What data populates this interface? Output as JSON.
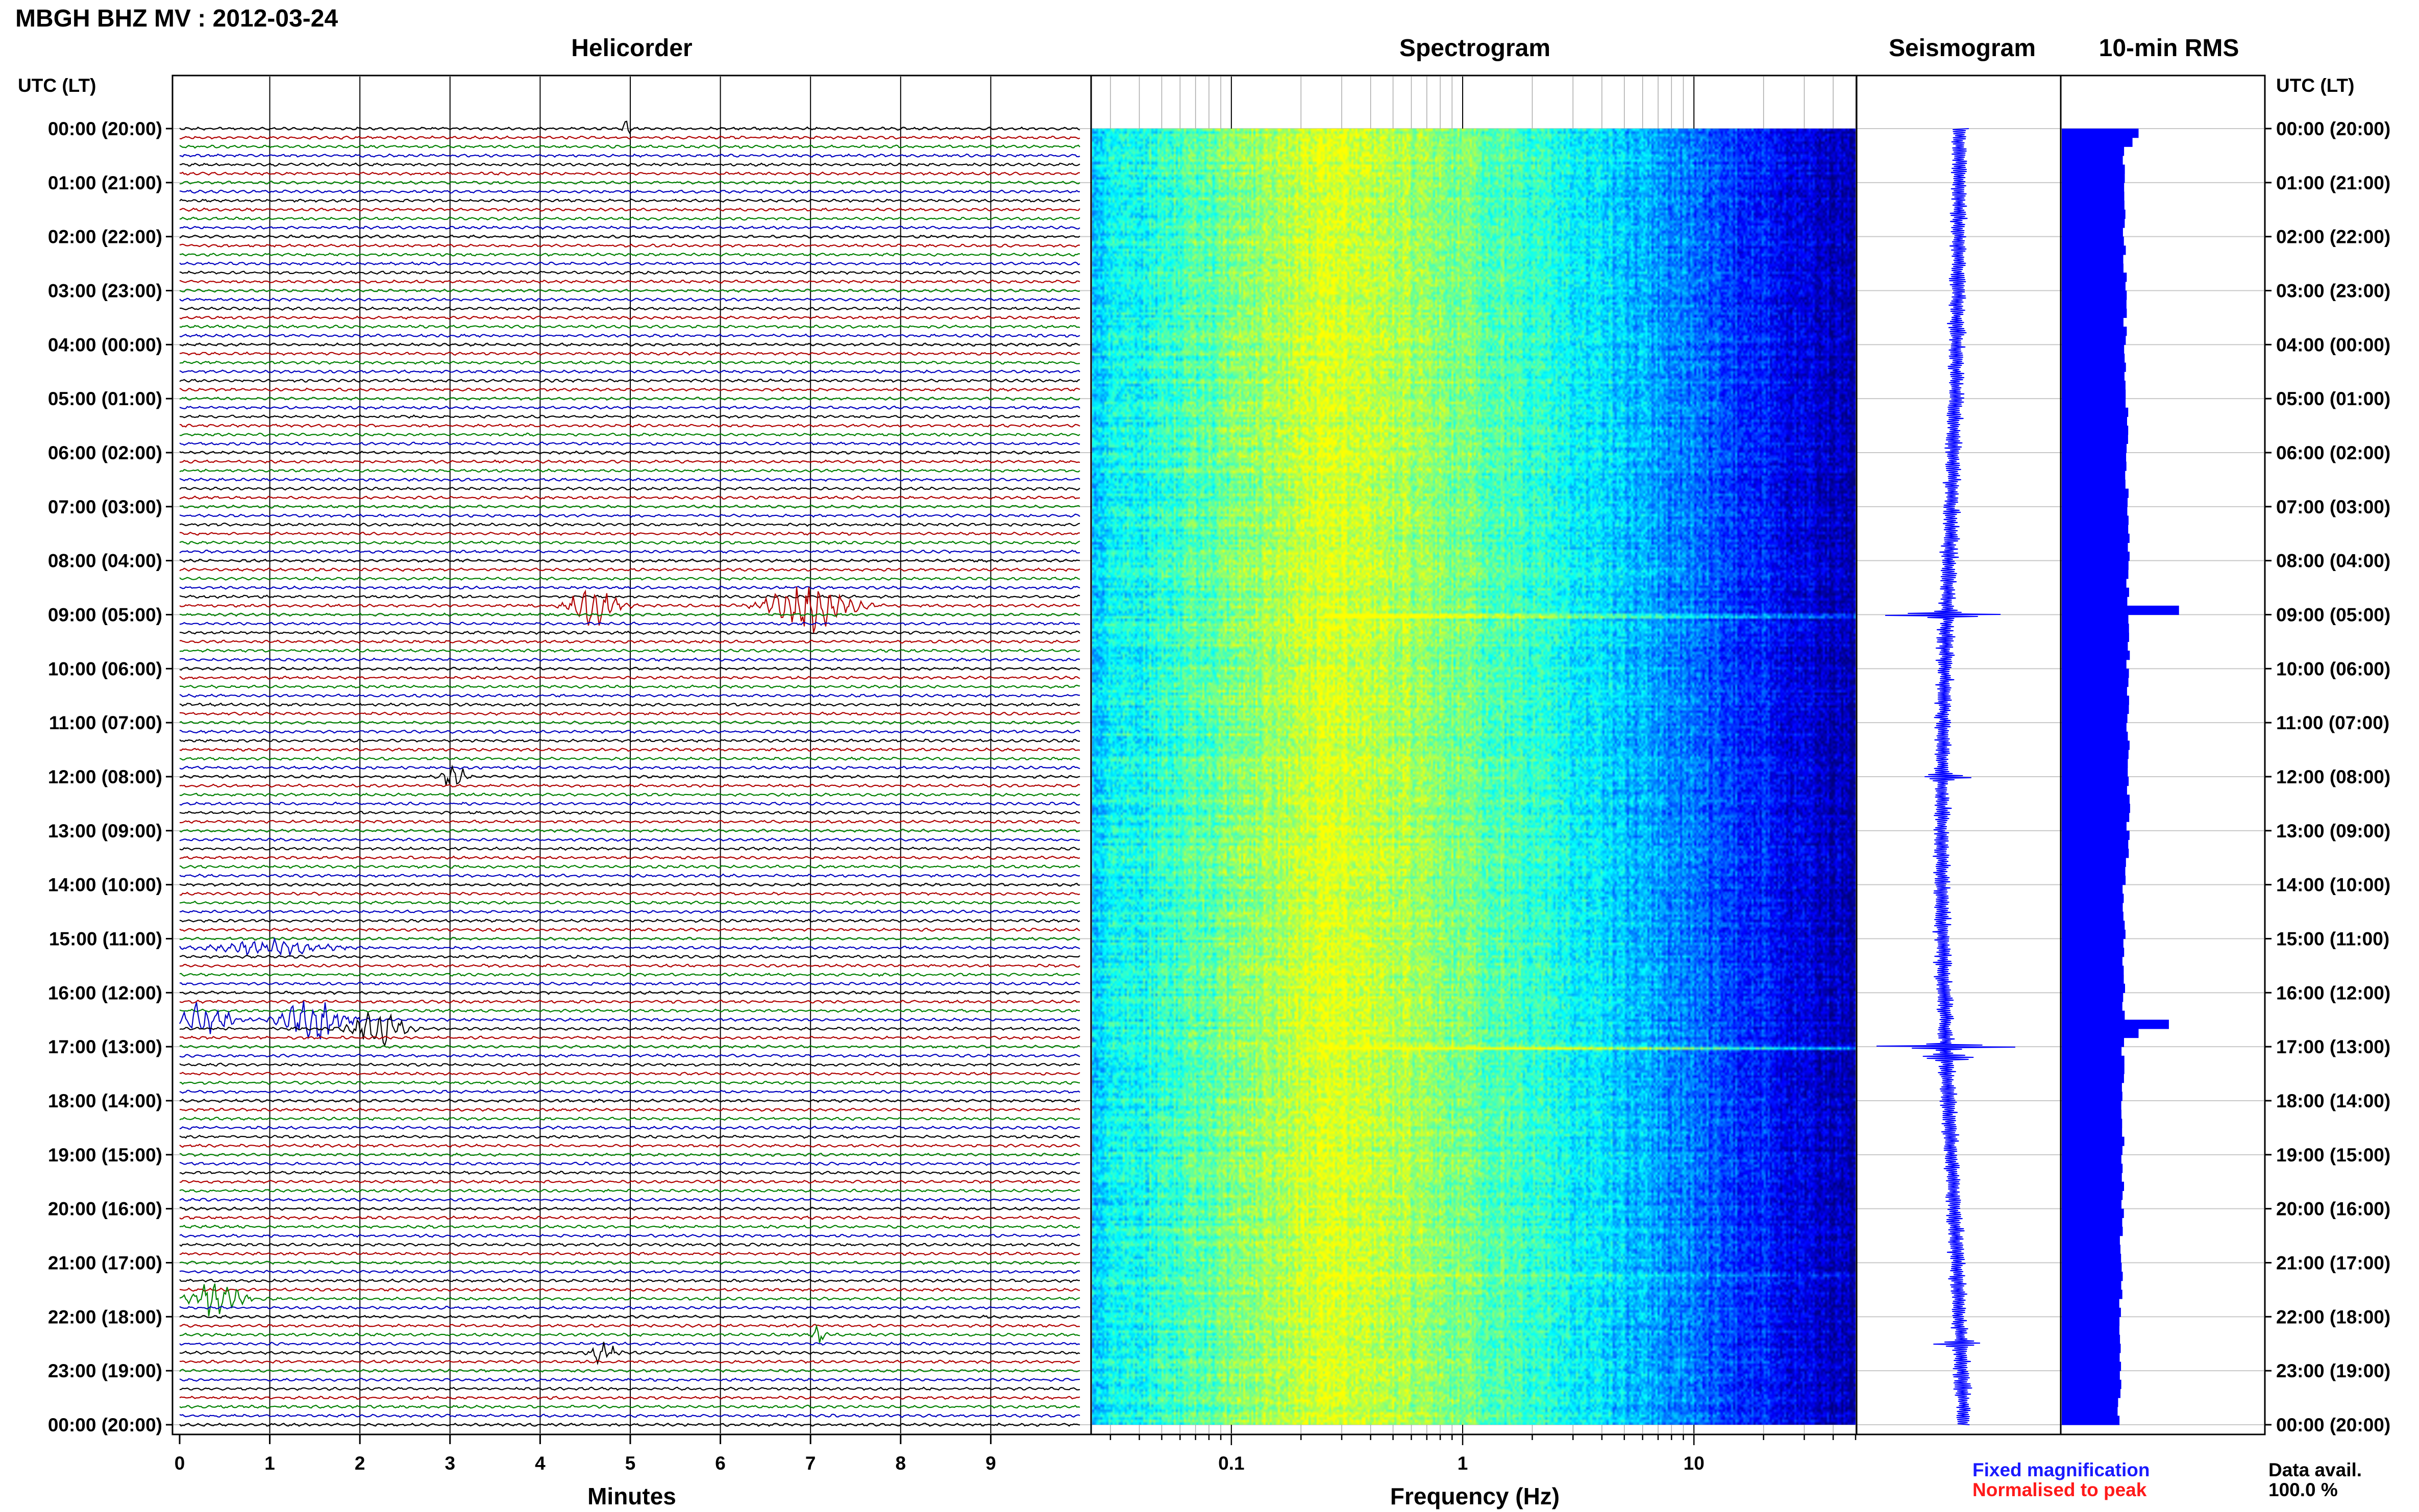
{
  "header": {
    "title": "MBGH BHZ MV : 2012-03-24",
    "utc_left": "UTC (LT)",
    "utc_right": "UTC (LT)"
  },
  "panels": {
    "helicorder": "Helicorder",
    "spectrogram": "Spectrogram",
    "seismogram": "Seismogram",
    "rms": "10-min RMS"
  },
  "axes": {
    "minutes_label": "Minutes",
    "frequency_label": "Frequency (Hz)"
  },
  "legend": {
    "fixed": "Fixed magnification",
    "normalised": "Normalised to peak"
  },
  "availability": {
    "label": "Data avail.",
    "value": "100.0 %"
  },
  "colors": {
    "trace_cycle": [
      "#000000",
      "#b00000",
      "#008000",
      "#0000c0"
    ],
    "seismogram": "#0000ff",
    "rms": "#0000ff",
    "legend_fixed": "#1a1aff",
    "legend_normalised": "#ff1a1a"
  },
  "chart_data": [
    {
      "type": "line",
      "name": "helicorder",
      "xlabel": "Minutes",
      "xlim": [
        0,
        10
      ],
      "x_ticks": [
        "0",
        "1",
        "2",
        "3",
        "4",
        "5",
        "6",
        "7",
        "8",
        "9"
      ],
      "time_labels": [
        "00:00 (20:00)",
        "01:00 (21:00)",
        "02:00 (22:00)",
        "03:00 (23:00)",
        "04:00 (00:00)",
        "05:00 (01:00)",
        "06:00 (02:00)",
        "07:00 (03:00)",
        "08:00 (04:00)",
        "09:00 (05:00)",
        "10:00 (06:00)",
        "11:00 (07:00)",
        "12:00 (08:00)",
        "13:00 (09:00)",
        "14:00 (10:00)",
        "15:00 (11:00)",
        "16:00 (12:00)",
        "17:00 (13:00)",
        "18:00 (14:00)",
        "19:00 (15:00)",
        "20:00 (16:00)",
        "21:00 (17:00)",
        "22:00 (18:00)",
        "23:00 (19:00)",
        "00:00 (20:00)"
      ],
      "rows": 145,
      "rows_per_hour": 6,
      "events": [
        {
          "row": 0,
          "minute": 4.95,
          "amp": 1.5,
          "width": 0.08
        },
        {
          "row": 53,
          "minute": 4.6,
          "amp": 3.5,
          "width": 0.35
        },
        {
          "row": 53,
          "minute": 7.0,
          "amp": 5.5,
          "width": 0.55
        },
        {
          "row": 72,
          "minute": 3.05,
          "amp": 3.0,
          "width": 0.15
        },
        {
          "row": 91,
          "minute": 1.0,
          "amp": 1.3,
          "width": 0.8
        },
        {
          "row": 99,
          "minute": 0.3,
          "amp": 3.5,
          "width": 0.35
        },
        {
          "row": 99,
          "minute": 1.5,
          "amp": 4.0,
          "width": 0.45
        },
        {
          "row": 100,
          "minute": 2.2,
          "amp": 3.0,
          "width": 0.4
        },
        {
          "row": 130,
          "minute": 0.4,
          "amp": 3.5,
          "width": 0.35
        },
        {
          "row": 134,
          "minute": 7.1,
          "amp": 2.5,
          "width": 0.08
        },
        {
          "row": 136,
          "minute": 4.7,
          "amp": 2.0,
          "width": 0.2
        }
      ]
    },
    {
      "type": "heatmap",
      "name": "spectrogram",
      "xlabel": "Frequency (Hz)",
      "x_scale": "log",
      "xlim": [
        0.025,
        50
      ],
      "x_ticks": [
        "0.1",
        "1",
        "10"
      ],
      "colormap": [
        "#00007f",
        "#0000ff",
        "#007fff",
        "#00ffff",
        "#7fff7f",
        "#ffff00"
      ],
      "peak_frequency": 0.25,
      "bright_lines": [
        {
          "hour": 9.0,
          "amp": 0.5
        },
        {
          "hour": 17.0,
          "amp": 0.45
        },
        {
          "hour": 21.2,
          "amp": 0.2
        }
      ]
    },
    {
      "type": "line",
      "name": "seismogram",
      "note_fixed": "Fixed magnification",
      "bursts": [
        {
          "hour": 9.0,
          "amp": 3.0
        },
        {
          "hour": 12.0,
          "amp": 1.3
        },
        {
          "hour": 17.0,
          "amp": 3.5
        },
        {
          "hour": 17.2,
          "amp": 1.5
        },
        {
          "hour": 22.5,
          "amp": 1.0
        }
      ]
    },
    {
      "type": "bar",
      "name": "10-min RMS",
      "orientation": "horizontal",
      "intervals": 144,
      "base_level": 0.3,
      "xlim": [
        0,
        1.0
      ],
      "peaks": [
        {
          "interval": 0,
          "value": 0.38
        },
        {
          "interval": 1,
          "value": 0.35
        },
        {
          "interval": 53,
          "value": 0.58
        },
        {
          "interval": 99,
          "value": 0.53
        },
        {
          "interval": 100,
          "value": 0.38
        }
      ]
    }
  ]
}
